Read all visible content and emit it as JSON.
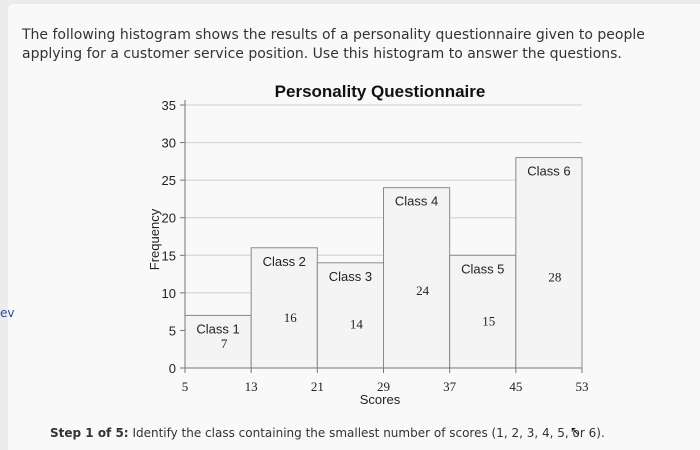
{
  "question": "The following histogram shows the results of a personality questionnaire given to people applying for a customer service position. Use this histogram to answer the questions.",
  "left_edge_mark": "ev",
  "step": {
    "label": "Step 1 of 5:",
    "text": "Identify the class containing the smallest number of scores (1, 2, 3, 4, 5, or 6)."
  },
  "chart_data": {
    "type": "bar",
    "title": "Personality Questionnaire",
    "xlabel": "Scores",
    "ylabel": "Frequency",
    "x_ticks": [
      5,
      13,
      21,
      29,
      37,
      45,
      53
    ],
    "y_ticks": [
      0,
      5,
      10,
      15,
      20,
      25,
      30,
      35
    ],
    "ylim": [
      0,
      35
    ],
    "xlim": [
      5,
      53
    ],
    "grid": true,
    "bars": [
      {
        "class_label": "Class 1",
        "start": 5,
        "end": 13,
        "value": 7
      },
      {
        "class_label": "Class 2",
        "start": 13,
        "end": 21,
        "value": 16
      },
      {
        "class_label": "Class 3",
        "start": 21,
        "end": 29,
        "value": 14
      },
      {
        "class_label": "Class 4",
        "start": 29,
        "end": 37,
        "value": 24
      },
      {
        "class_label": "Class 5",
        "start": 37,
        "end": 45,
        "value": 15
      },
      {
        "class_label": "Class 6",
        "start": 45,
        "end": 53,
        "value": 28
      }
    ],
    "colors": {
      "bar_fill": "#f4f4f4",
      "bar_stroke": "#8a8a8a",
      "grid": "#cfcfcf"
    }
  }
}
